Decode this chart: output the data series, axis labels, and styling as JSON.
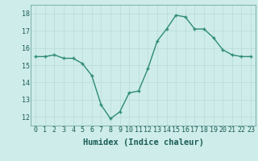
{
  "x": [
    0,
    1,
    2,
    3,
    4,
    5,
    6,
    7,
    8,
    9,
    10,
    11,
    12,
    13,
    14,
    15,
    16,
    17,
    18,
    19,
    20,
    21,
    22,
    23
  ],
  "y": [
    15.5,
    15.5,
    15.6,
    15.4,
    15.4,
    15.1,
    14.4,
    12.7,
    11.9,
    12.3,
    13.4,
    13.5,
    14.8,
    16.4,
    17.1,
    17.9,
    17.8,
    17.1,
    17.1,
    16.6,
    15.9,
    15.6,
    15.5,
    15.5
  ],
  "ylim": [
    11.5,
    18.5
  ],
  "yticks": [
    12,
    13,
    14,
    15,
    16,
    17,
    18
  ],
  "xticks": [
    0,
    1,
    2,
    3,
    4,
    5,
    6,
    7,
    8,
    9,
    10,
    11,
    12,
    13,
    14,
    15,
    16,
    17,
    18,
    19,
    20,
    21,
    22,
    23
  ],
  "xlabel": "Humidex (Indice chaleur)",
  "line_color": "#2e8b77",
  "marker": "+",
  "marker_size": 3.5,
  "bg_color": "#ceecea",
  "grid_color": "#b8dbd8",
  "spine_color": "#5a9a90",
  "tick_label_fontsize": 6,
  "xlabel_fontsize": 7.5,
  "xlabel_fontweight": "bold"
}
